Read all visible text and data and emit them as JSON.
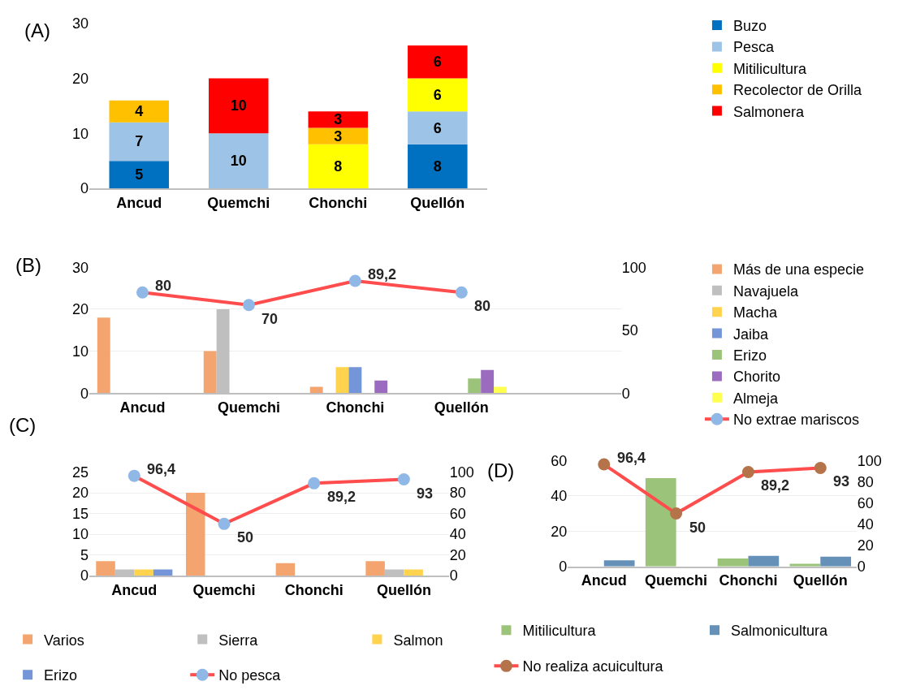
{
  "chart_data": [
    {
      "type": "bar",
      "title": "(A)",
      "stacked": true,
      "data_labels": true,
      "legend": "right",
      "categories": [
        "Ancud",
        "Quemchi",
        "Chonchi",
        "Quellón"
      ],
      "ylim": [
        0,
        30
      ],
      "yticks": [
        0,
        10,
        20,
        30
      ],
      "series": [
        {
          "name": "Buzo",
          "color": "#0070c0",
          "values": [
            5,
            null,
            null,
            8
          ]
        },
        {
          "name": "Pesca",
          "color": "#9dc3e6",
          "values": [
            7,
            10,
            null,
            6
          ]
        },
        {
          "name": "Mitilicultura",
          "color": "#ffff00",
          "values": [
            null,
            null,
            8,
            6
          ]
        },
        {
          "name": "Recolector de Orilla",
          "color": "#ffc000",
          "values": [
            4,
            null,
            3,
            null
          ]
        },
        {
          "name": "Salmonera",
          "color": "#ff0000",
          "values": [
            null,
            10,
            3,
            6
          ]
        }
      ]
    },
    {
      "type": "bar",
      "title": "(B)",
      "legend": "right",
      "grid": "y",
      "categories": [
        "Ancud",
        "Quemchi",
        "Chonchi",
        "Quellón",
        null
      ],
      "ylim": [
        0,
        30
      ],
      "yticks": [
        0,
        10,
        20,
        30
      ],
      "y2lim": [
        0,
        100
      ],
      "y2ticks": [
        0,
        50,
        100
      ],
      "series": [
        {
          "name": "Más de una especie",
          "color": "#f4a46e",
          "values": [
            18,
            10,
            1.5,
            null,
            null
          ]
        },
        {
          "name": "Navajuela",
          "color": "#bfbfbf",
          "values": [
            null,
            20,
            null,
            null,
            null
          ]
        },
        {
          "name": "Macha",
          "color": "#ffd34d",
          "values": [
            null,
            null,
            6.2,
            null,
            null
          ]
        },
        {
          "name": "Jaiba",
          "color": "#7496d8",
          "values": [
            null,
            null,
            6.2,
            null,
            null
          ]
        },
        {
          "name": "Erizo",
          "color": "#9bc47a",
          "values": [
            null,
            null,
            null,
            3.5,
            null
          ]
        },
        {
          "name": "Chorito",
          "color": "#9a6bbf",
          "values": [
            null,
            null,
            3,
            5.5,
            null
          ]
        },
        {
          "name": "Almeja",
          "color": "#ffff4d",
          "values": [
            null,
            null,
            null,
            1.5,
            null
          ]
        },
        {
          "name": "No extrae mariscos",
          "type": "line",
          "axis": "y2",
          "color": "#ff4c4c",
          "marker": "circle",
          "colors": [
            "#8fb8e6",
            "#8fb8e6",
            "#8fb8e6",
            "#8fb8e6",
            "#8fb8e6"
          ],
          "values": [
            80,
            70,
            89.2,
            80,
            null
          ],
          "value_labels": [
            "80",
            "70",
            "89,2",
            "80",
            null
          ]
        }
      ]
    },
    {
      "type": "bar",
      "title": "(C)",
      "legend": "bottom",
      "grid": "y",
      "categories": [
        "Ancud",
        "Quemchi",
        "Chonchi",
        "Quellón"
      ],
      "ylim": [
        0,
        25
      ],
      "yticks": [
        0,
        5,
        10,
        15,
        20,
        25
      ],
      "y2lim": [
        0,
        100
      ],
      "y2ticks": [
        0,
        20,
        40,
        60,
        80,
        100
      ],
      "series": [
        {
          "name": "Varios",
          "color": "#f4a46e",
          "values": [
            3.5,
            20,
            3,
            3.5
          ]
        },
        {
          "name": "Sierra",
          "color": "#bfbfbf",
          "values": [
            1.5,
            null,
            null,
            1.5
          ]
        },
        {
          "name": "Salmon",
          "color": "#ffd34d",
          "values": [
            1.5,
            null,
            null,
            1.5
          ]
        },
        {
          "name": "Erizo",
          "color": "#7496d8",
          "values": [
            1.5,
            null,
            null,
            null
          ]
        },
        {
          "name": "No pesca",
          "type": "line",
          "axis": "y2",
          "color": "#ff4c4c",
          "marker": "circle",
          "colors": [
            "#8fb8e6",
            "#8fb8e6",
            "#8fb8e6",
            "#8fb8e6"
          ],
          "values": [
            96.4,
            50,
            89.2,
            93
          ],
          "value_labels": [
            "96,4",
            "50",
            "89,2",
            "93"
          ]
        }
      ]
    },
    {
      "type": "bar",
      "title": "(D)",
      "legend": "bottom",
      "grid": "y",
      "categories": [
        "Ancud",
        "Quemchi",
        "Chonchi",
        "Quellón"
      ],
      "ylim": [
        0,
        60
      ],
      "yticks": [
        0,
        20,
        40,
        60
      ],
      "y2lim": [
        0,
        100
      ],
      "y2ticks": [
        0,
        20,
        40,
        60,
        80,
        100
      ],
      "series": [
        {
          "name": "Mitilicultura",
          "color": "#9bc47a",
          "values": [
            null,
            50,
            4.5,
            1.5
          ]
        },
        {
          "name": "Salmonicultura",
          "color": "#6590b8",
          "values": [
            3.5,
            null,
            6,
            5.5
          ]
        },
        {
          "name": "No realiza acuicultura",
          "type": "line",
          "axis": "y2",
          "color": "#ff4c4c",
          "marker": "circle",
          "colors": [
            "#b5734a",
            "#b5734a",
            "#b5734a",
            "#b5734a"
          ],
          "values": [
            96.4,
            50,
            89.2,
            93
          ],
          "value_labels": [
            "96,4",
            "50",
            "89,2",
            "93"
          ]
        }
      ]
    }
  ]
}
